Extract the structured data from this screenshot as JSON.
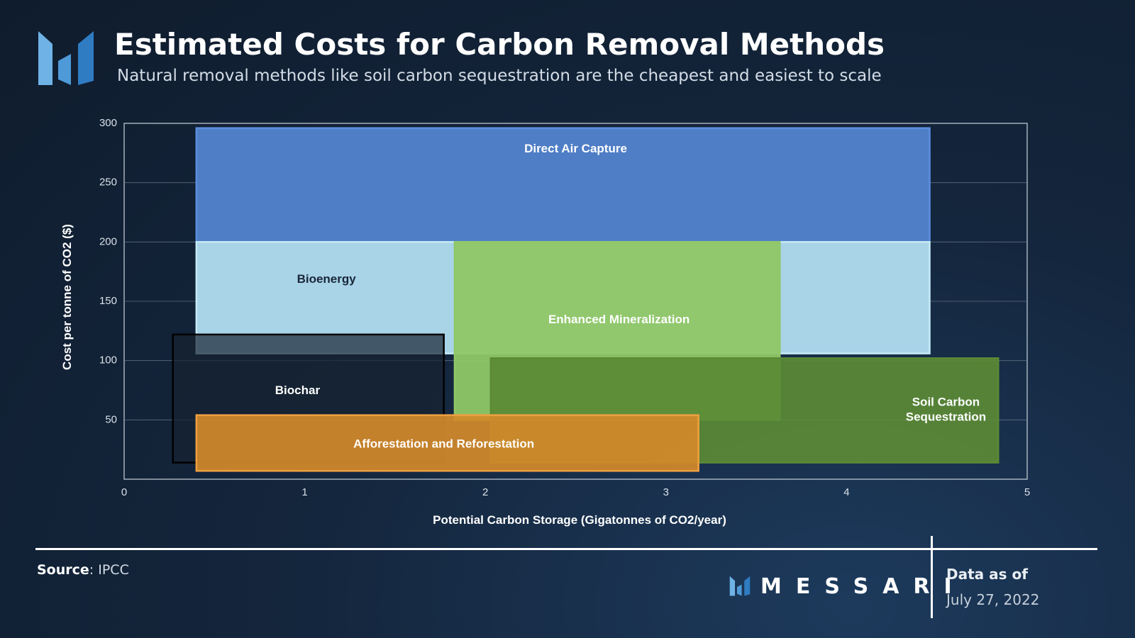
{
  "header": {
    "title": "Estimated Costs for Carbon Removal Methods",
    "subtitle": "Natural removal methods like soil carbon sequestration are the cheapest and easiest to scale"
  },
  "colors": {
    "logo_light": "#6fb3e6",
    "logo_dark": "#2f7cc3"
  },
  "chart_data": {
    "type": "range-box",
    "title": "Estimated Costs for Carbon Removal Methods",
    "xlabel": "Potential Carbon Storage (Gigatonnes of CO2/year)",
    "ylabel": "Cost per tonne of CO2 ($)",
    "xlim": [
      0,
      5
    ],
    "ylim": [
      0,
      300
    ],
    "xticks": [
      "0",
      "1",
      "2",
      "3",
      "4",
      "5"
    ],
    "yticks": [
      "50",
      "100",
      "150",
      "200",
      "250",
      "300"
    ],
    "xtick_values": [
      0,
      1,
      2,
      3,
      4,
      5
    ],
    "ytick_values": [
      50,
      100,
      150,
      200,
      250,
      300
    ],
    "grid": true,
    "series": [
      {
        "name": "Direct Air Capture",
        "x_min": 0.4,
        "x_max": 4.46,
        "y_min": 200,
        "y_max": 296,
        "fill": "#4f7ec6",
        "stroke": "#5c8fe0",
        "label_color": "#ffffff",
        "label_x": 2.5,
        "label_y": 278
      },
      {
        "name": "Bioenergy",
        "x_min": 0.4,
        "x_max": 4.46,
        "y_min": 106,
        "y_max": 200,
        "fill": "#a9d4e8",
        "stroke": "#c5eaf7",
        "label_color": "#1a2638",
        "label_x": 1.12,
        "label_y": 168
      },
      {
        "name": "Biochar",
        "x_min": 0.27,
        "x_max": 1.77,
        "y_min": 14,
        "y_max": 122,
        "fill": "#172230",
        "stroke": "#000000",
        "label_color": "#ffffff",
        "label_x": 0.96,
        "label_y": 74,
        "fill_opacity": 0.7
      },
      {
        "name": "Enhanced Mineralization",
        "x_min": 1.83,
        "x_max": 3.63,
        "y_min": 50,
        "y_max": 200,
        "fill": "#8fc766",
        "stroke": "#8fc766",
        "label_color": "#ffffff",
        "label_x": 2.74,
        "label_y": 134,
        "fill_opacity": 0.95
      },
      {
        "name": "Soil Carbon Sequestration",
        "label_lines": [
          "Soil Carbon",
          "Sequestration"
        ],
        "x_min": 2.03,
        "x_max": 4.84,
        "y_min": 14,
        "y_max": 102,
        "fill": "#5b8a35",
        "stroke": "#5b8a35",
        "label_color": "#ffffff",
        "label_x": 4.55,
        "label_y": 58,
        "fill_opacity": 0.92
      },
      {
        "name": "Afforestation and Reforestation",
        "x_min": 0.4,
        "x_max": 3.18,
        "y_min": 7,
        "y_max": 54,
        "fill": "#d48a2a",
        "stroke": "#f0a040",
        "label_color": "#ffffff",
        "label_x": 1.77,
        "label_y": 29,
        "fill_opacity": 0.92
      }
    ]
  },
  "footer": {
    "source_label": "Source",
    "source_value": ": IPCC",
    "brand": "MESSARI",
    "data_as_of_label": "Data as of",
    "data_as_of_date": "July 27, 2022"
  }
}
